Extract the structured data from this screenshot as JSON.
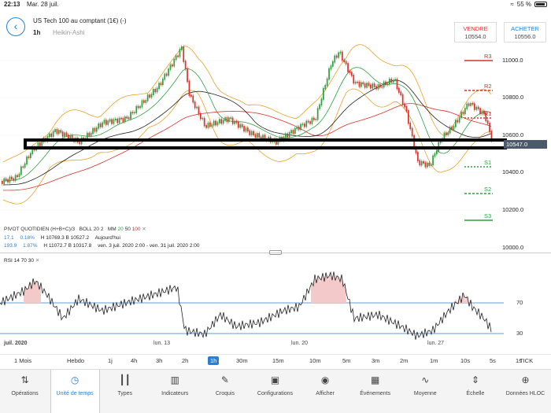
{
  "status": {
    "time": "22:13",
    "date": "Mar. 28 juil.",
    "battery": "55 %"
  },
  "header": {
    "title": "US Tech 100 au comptant (1€) (-)",
    "timeframe": "1h",
    "chart_type": "Heikin-Ashi"
  },
  "trade": {
    "sell": {
      "label": "VENDRE",
      "price": "10554.0"
    },
    "buy": {
      "label": "ACHETER",
      "price": "10556.0"
    }
  },
  "price_axis": [
    "11000.0",
    "10800.0",
    "10600.0",
    "10400.0",
    "10200.0",
    "10000.0"
  ],
  "current_price": "10547.0",
  "pivots": {
    "r3": "R3",
    "r2": "R2",
    "r1": "R1",
    "s1": "S1",
    "s2": "S2",
    "s3": "S3"
  },
  "legend": {
    "pivot": "PIVOT QUOTIDIEN (H+B+C)/3",
    "boll": "BOLL 20 2",
    "mm": "MM",
    "mm_20": "20",
    "mm_50": "50",
    "mm_100": "100",
    "row1": {
      "v": "17.1",
      "p": "0.18%",
      "hb": "H 10769.3  B 10527.2",
      "when": "Aujourd'hui"
    },
    "row2": {
      "v": "193.9",
      "p": "1.87%",
      "hb": "H 11072.7  B 10317.8",
      "when": "ven. 3 juil. 2020 2:00 - ven. 31 juil. 2020 2:00"
    }
  },
  "rsi": {
    "label": "RSI 14 70 30",
    "upper": "70",
    "lower": "30"
  },
  "date_axis": [
    "juil. 2020",
    "lun. 13",
    "lun. 20",
    "lun. 27"
  ],
  "timeframes": [
    "1 Mois",
    "Hebdo",
    "1j",
    "4h",
    "3h",
    "2h",
    "1h",
    "30m",
    "15m",
    "10m",
    "5m",
    "3m",
    "2m",
    "1m",
    "10s",
    "5s",
    "1s",
    "TICK"
  ],
  "active_timeframe": "1h",
  "tabs": [
    {
      "label": "Opérations",
      "icon": "arrows-icon"
    },
    {
      "label": "Unité de temps",
      "icon": "clock-icon"
    },
    {
      "label": "Types",
      "icon": "candles-icon"
    },
    {
      "label": "Indicateurs",
      "icon": "indicators-icon"
    },
    {
      "label": "Croquis",
      "icon": "pencil-icon"
    },
    {
      "label": "Configurations",
      "icon": "layout-icon"
    },
    {
      "label": "Afficher",
      "icon": "eye-icon"
    },
    {
      "label": "Événements",
      "icon": "calendar-icon"
    },
    {
      "label": "Moyenne",
      "icon": "average-icon"
    },
    {
      "label": "Échelle",
      "icon": "scale-icon"
    },
    {
      "label": "Données HLOC",
      "icon": "crosshair-icon"
    }
  ],
  "colors": {
    "accent": "#2a7fd4",
    "up": "#2e9e3e",
    "down": "#d9302a",
    "bollinger": "#e9a22a",
    "highlight_box": "#000000"
  }
}
